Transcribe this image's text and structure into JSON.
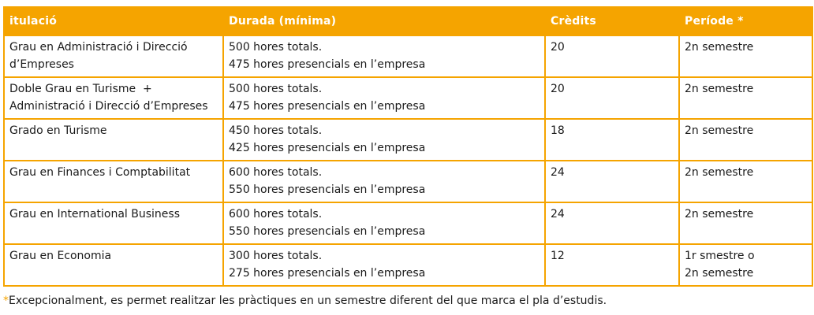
{
  "table": {
    "headers": [
      "itulació",
      "Durada (mínima)",
      "Crèdits",
      "Període *"
    ],
    "rows": [
      {
        "titulacio": [
          "Grau en Administració i Direcció",
          "d’Empreses"
        ],
        "durada": [
          "500 hores totals.",
          "475 hores presencials en l’empresa"
        ],
        "credits": "20",
        "periode": [
          "2n semestre"
        ]
      },
      {
        "titulacio": [
          "Doble Grau en Turisme  +",
          "Administració i Direcció d’Empreses"
        ],
        "durada": [
          "500 hores totals.",
          "475 hores presencials en l’empresa"
        ],
        "credits": "20",
        "periode": [
          "2n semestre"
        ]
      },
      {
        "titulacio": [
          "Grado en Turisme"
        ],
        "durada": [
          "450 hores totals.",
          "425 hores presencials en l’empresa"
        ],
        "credits": "18",
        "periode": [
          "2n semestre"
        ]
      },
      {
        "titulacio": [
          "Grau en Finances i Comptabilitat"
        ],
        "durada": [
          "600 hores totals.",
          "550 hores presencials en l’empresa"
        ],
        "credits": "24",
        "periode": [
          "2n semestre"
        ]
      },
      {
        "titulacio": [
          "Grau en International Business"
        ],
        "durada": [
          "600 hores totals.",
          "550 hores presencials en l’empresa"
        ],
        "credits": "24",
        "periode": [
          "2n semestre"
        ]
      },
      {
        "titulacio": [
          "Grau en Economia"
        ],
        "durada": [
          "300 hores totals.",
          "275 hores presencials en l’empresa"
        ],
        "credits": "12",
        "periode": [
          "1r smestre o",
          "2n semestre"
        ]
      }
    ]
  },
  "footnote": {
    "marker": "*",
    "text": "Excepcionalment, es permet realitzar les pràctiques en un semestre diferent del que marca el pla d’estudis."
  },
  "colors": {
    "accent": "#f5a400",
    "header_text": "#ffffff",
    "body_text": "#1a1a1a"
  }
}
